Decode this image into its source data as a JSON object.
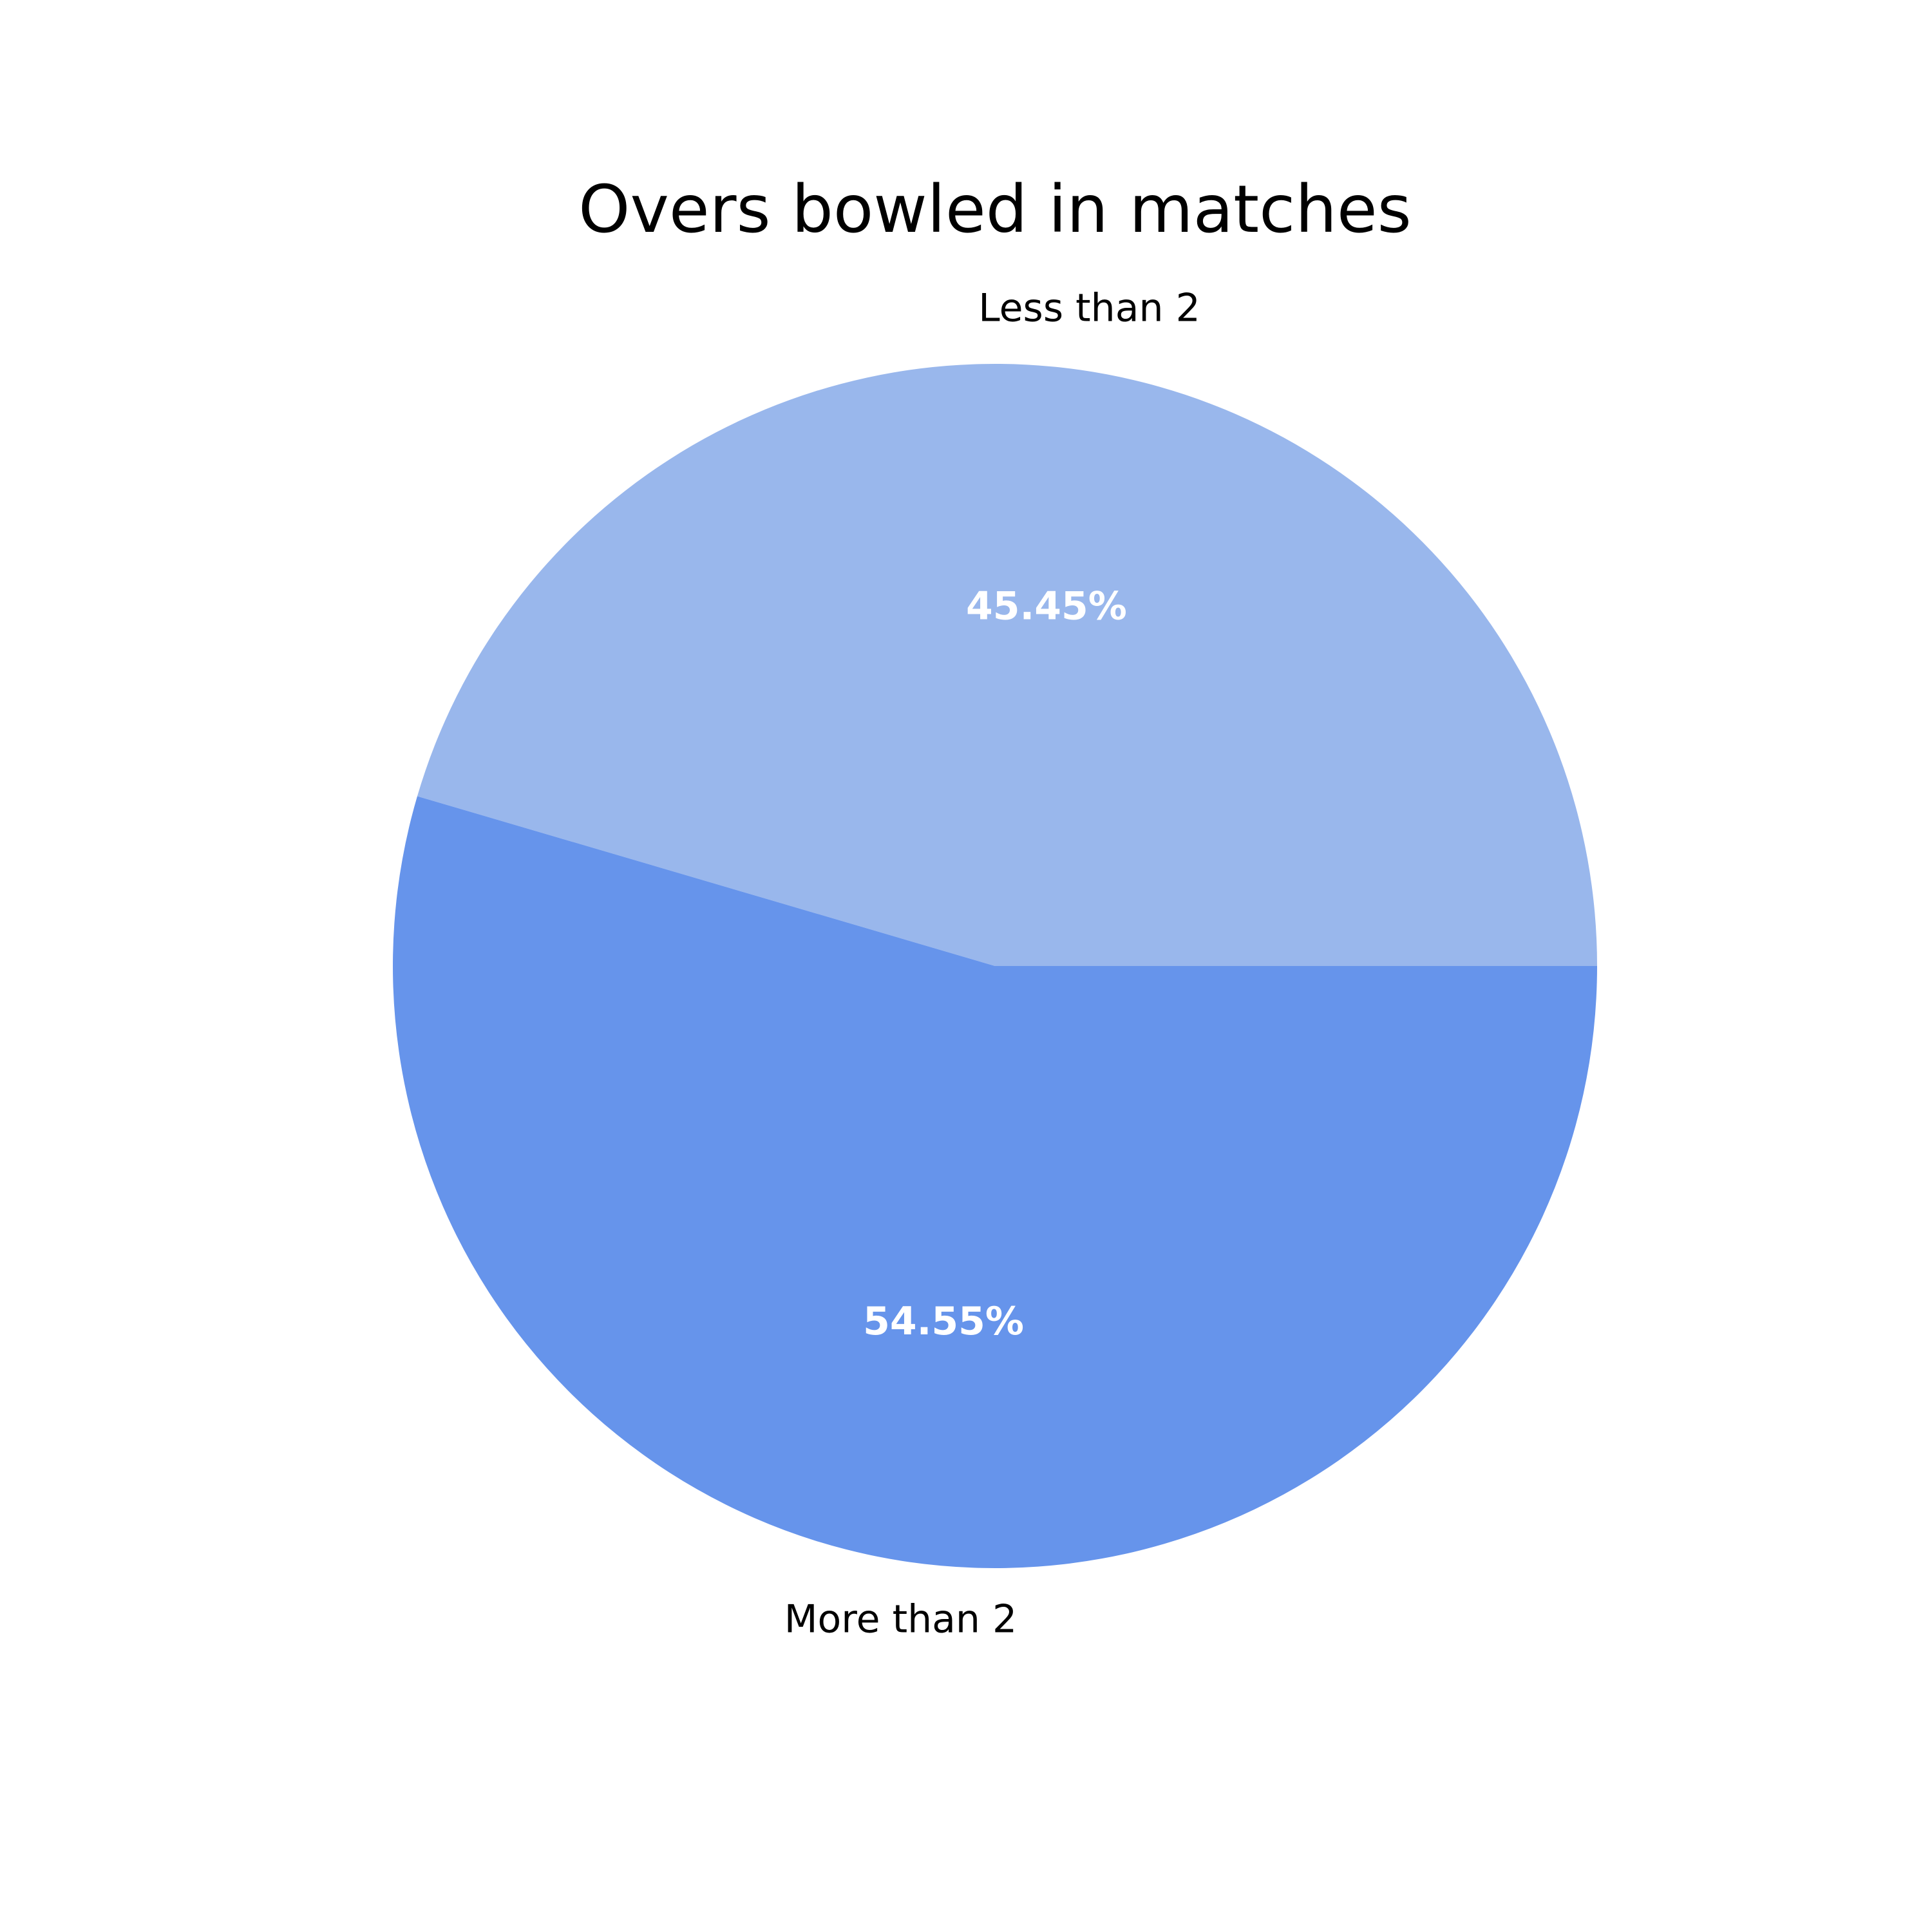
{
  "chart_data": {
    "type": "pie",
    "title": "Overs bowled in matches",
    "slices": [
      {
        "label": "Less than 2",
        "value": 45.45,
        "value_label": "45.45%",
        "color": "#99b7ec"
      },
      {
        "label": "More than 2",
        "value": 54.55,
        "value_label": "54.55%",
        "color": "#6694eb"
      }
    ],
    "start_angle_deg": 0,
    "direction": "counterclockwise",
    "legend": false
  }
}
